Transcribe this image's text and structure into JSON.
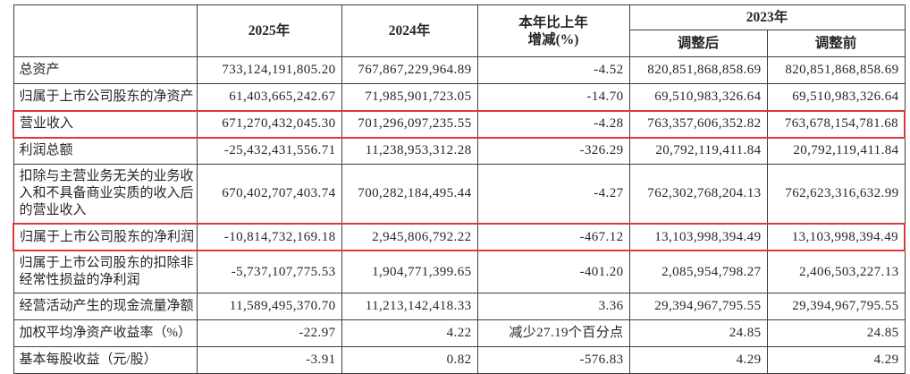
{
  "colors": {
    "highlight_red": "#dc3a3a",
    "table_border": "#3e3e3e",
    "text": "#262626",
    "background": "#ffffff"
  },
  "table": {
    "header": {
      "corner": "",
      "col_year_2025": "2025年",
      "col_year_2024": "2024年",
      "col_change": "本年比上年\n增减(%)",
      "col_year_2023": "2023年",
      "col_adjusted": "调整后",
      "col_before_adjust": "调整前"
    },
    "rows": [
      {
        "label": "总资产",
        "values": [
          "733,124,191,805.20",
          "767,867,229,964.89",
          "-4.52",
          "820,851,868,858.69",
          "820,851,868,858.69"
        ],
        "highlighted": false
      },
      {
        "label": "归属于上市公司股东的净资产",
        "values": [
          "61,403,665,242.67",
          "71,985,901,723.05",
          "-14.70",
          "69,510,983,326.64",
          "69,510,983,326.64"
        ],
        "highlighted": false
      },
      {
        "label": "营业收入",
        "values": [
          "671,270,432,045.30",
          "701,296,097,235.55",
          "-4.28",
          "763,357,606,352.82",
          "763,678,154,781.68"
        ],
        "highlighted": true
      },
      {
        "label": "利润总额",
        "values": [
          "-25,432,431,556.71",
          "11,238,953,312.28",
          "-326.29",
          "20,792,119,411.84",
          "20,792,119,411.84"
        ],
        "highlighted": false
      },
      {
        "label": "扣除与主营业务无关的业务收入和不具备商业实质的收入后的营业收入",
        "values": [
          "670,402,707,403.74",
          "700,282,184,495.44",
          "-4.27",
          "762,302,768,204.13",
          "762,623,316,632.99"
        ],
        "highlighted": false
      },
      {
        "label": "归属于上市公司股东的净利润",
        "values": [
          "-10,814,732,169.18",
          "2,945,806,792.22",
          "-467.12",
          "13,103,998,394.49",
          "13,103,998,394.49"
        ],
        "highlighted": true
      },
      {
        "label": "归属于上市公司股东的扣除非经常性损益的净利润",
        "values": [
          "-5,737,107,775.53",
          "1,904,771,399.65",
          "-401.20",
          "2,085,954,798.27",
          "2,406,503,227.13"
        ],
        "highlighted": false
      },
      {
        "label": "经营活动产生的现金流量净额",
        "values": [
          "11,589,495,370.70",
          "11,213,142,418.33",
          "3.36",
          "29,394,967,795.55",
          "29,394,967,795.55"
        ],
        "highlighted": false
      },
      {
        "label": "加权平均净资产收益率（%）",
        "values": [
          "-22.97",
          "4.22",
          "减少27.19个百分点",
          "24.85",
          "24.85"
        ],
        "highlighted": false
      },
      {
        "label": "基本每股收益（元/股）",
        "values": [
          "-3.91",
          "0.82",
          "-576.83",
          "4.29",
          "4.29"
        ],
        "highlighted": false
      }
    ]
  }
}
